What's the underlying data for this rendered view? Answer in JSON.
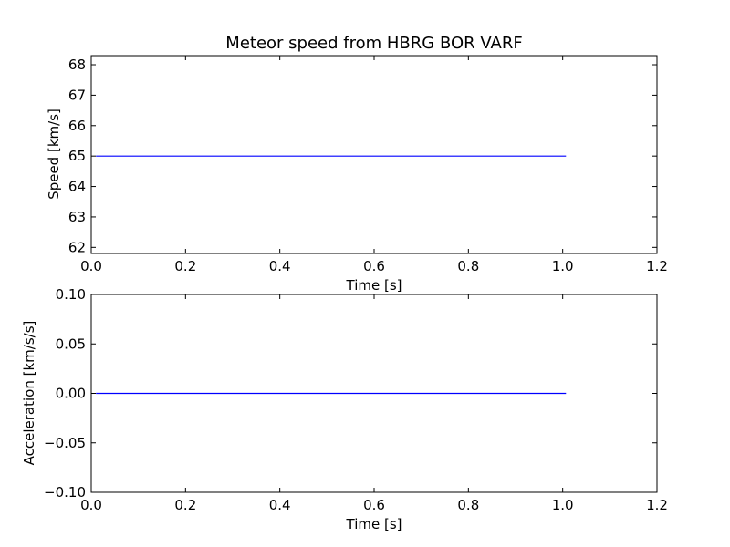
{
  "chart_data": [
    {
      "type": "line",
      "title": "Meteor speed from  HBRG BOR VARF",
      "xlabel": "Time [s]",
      "ylabel": "Speed [km/s]",
      "xlim": [
        0.0,
        1.2
      ],
      "ylim": [
        61.8,
        68.3
      ],
      "xticks": [
        0.0,
        0.2,
        0.4,
        0.6,
        0.8,
        1.0,
        1.2
      ],
      "xtick_labels": [
        "0.0",
        "0.2",
        "0.4",
        "0.6",
        "0.8",
        "1.0",
        "1.2"
      ],
      "yticks": [
        62,
        63,
        64,
        65,
        66,
        67,
        68
      ],
      "ytick_labels": [
        "62",
        "63",
        "64",
        "65",
        "66",
        "67",
        "68"
      ],
      "grid": false,
      "series": [
        {
          "color": "#0000ff",
          "x": [
            0.01,
            0.1,
            0.2,
            0.3,
            0.4,
            0.5,
            0.6,
            0.7,
            0.8,
            0.9,
            1.0,
            1.007
          ],
          "y": [
            65.0,
            65.0,
            65.0,
            65.0,
            65.0,
            65.0,
            65.0,
            65.0,
            65.0,
            65.0,
            65.0,
            65.0
          ]
        }
      ]
    },
    {
      "type": "line",
      "title": "",
      "xlabel": "Time [s]",
      "ylabel": "Acceleration [km/s/s]",
      "xlim": [
        0.0,
        1.2
      ],
      "ylim": [
        -0.1,
        0.1
      ],
      "xticks": [
        0.0,
        0.2,
        0.4,
        0.6,
        0.8,
        1.0,
        1.2
      ],
      "xtick_labels": [
        "0.0",
        "0.2",
        "0.4",
        "0.6",
        "0.8",
        "1.0",
        "1.2"
      ],
      "yticks": [
        -0.1,
        -0.05,
        0.0,
        0.05,
        0.1
      ],
      "ytick_labels": [
        "−0.10",
        "−0.05",
        "0.00",
        "0.05",
        "0.10"
      ],
      "grid": false,
      "series": [
        {
          "color": "#0000ff",
          "x": [
            0.01,
            0.1,
            0.2,
            0.3,
            0.4,
            0.5,
            0.6,
            0.7,
            0.8,
            0.9,
            1.0,
            1.007
          ],
          "y": [
            0.0,
            0.0,
            0.0,
            0.0,
            0.0,
            0.0,
            0.0,
            0.0,
            0.0,
            0.0,
            0.0,
            0.0
          ]
        }
      ]
    }
  ]
}
